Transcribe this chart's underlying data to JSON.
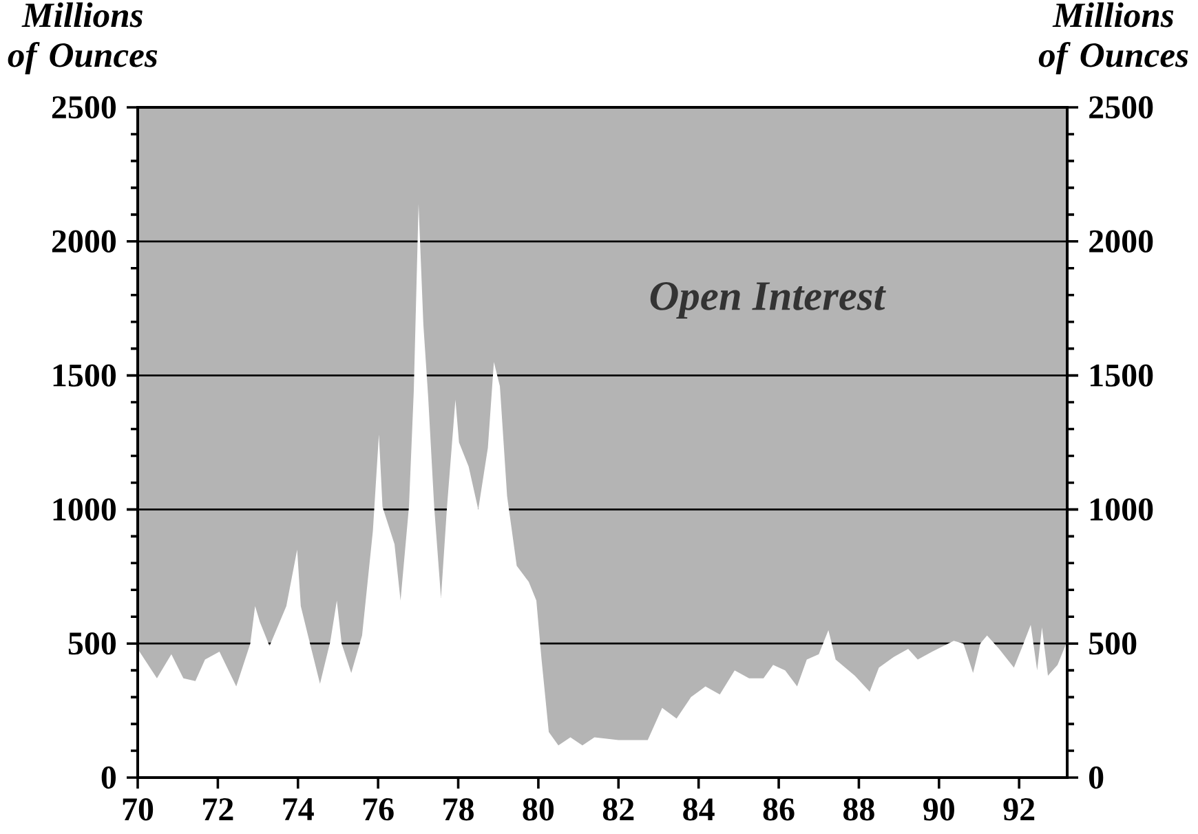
{
  "chart_data": {
    "type": "area",
    "ylabel": "Millions of Ounces",
    "y2label": "Millions of Ounces",
    "annotations": [
      "Open Interest"
    ],
    "x": [
      70.0,
      70.48,
      70.84,
      71.14,
      71.44,
      71.68,
      72.04,
      72.46,
      72.81,
      72.93,
      73.05,
      73.29,
      73.71,
      73.98,
      74.07,
      74.25,
      74.55,
      74.81,
      74.97,
      75.09,
      75.33,
      75.6,
      75.87,
      76.02,
      76.11,
      76.41,
      76.56,
      76.77,
      76.89,
      77.01,
      77.13,
      77.25,
      77.4,
      77.57,
      77.72,
      77.93,
      78.02,
      78.26,
      78.5,
      78.74,
      78.89,
      79.04,
      79.22,
      79.46,
      79.76,
      79.95,
      80.08,
      80.26,
      80.5,
      80.8,
      81.1,
      81.4,
      82.0,
      82.73,
      83.09,
      83.45,
      83.81,
      84.17,
      84.53,
      84.9,
      85.26,
      85.62,
      85.86,
      86.16,
      86.46,
      86.7,
      87.0,
      87.24,
      87.42,
      87.9,
      88.27,
      88.5,
      88.87,
      89.23,
      89.47,
      89.83,
      90.37,
      90.61,
      90.85,
      91.03,
      91.2,
      91.5,
      91.87,
      92.11,
      92.29,
      92.45,
      92.57,
      92.72,
      92.96,
      93.2
    ],
    "series": [
      {
        "color": "#ffffff",
        "values": [
          480,
          370,
          460,
          370,
          360,
          440,
          470,
          340,
          500,
          640,
          580,
          490,
          640,
          850,
          640,
          530,
          350,
          510,
          660,
          500,
          390,
          530,
          920,
          1280,
          1010,
          870,
          660,
          1010,
          1440,
          2140,
          1690,
          1420,
          1010,
          670,
          1010,
          1410,
          1250,
          1160,
          1000,
          1230,
          1550,
          1460,
          1050,
          790,
          730,
          660,
          440,
          170,
          120,
          150,
          120,
          150,
          140,
          140,
          260,
          220,
          300,
          340,
          310,
          400,
          370,
          370,
          420,
          400,
          340,
          440,
          460,
          550,
          440,
          380,
          320,
          410,
          450,
          480,
          440,
          470,
          510,
          500,
          390,
          500,
          530,
          480,
          410,
          500,
          570,
          400,
          560,
          380,
          420,
          510
        ]
      }
    ],
    "xlim": [
      70,
      93.2
    ],
    "xticks": [
      70,
      72,
      74,
      76,
      78,
      80,
      82,
      84,
      86,
      88,
      90,
      92
    ],
    "ylim": [
      0,
      2500
    ],
    "yticks": [
      0,
      {
        "value": 100,
        "label": null
      },
      {
        "value": 200,
        "label": null
      },
      {
        "value": 300,
        "label": null
      },
      {
        "value": 400,
        "label": null
      },
      500,
      {
        "value": 600,
        "label": null
      },
      {
        "value": 700,
        "label": null
      },
      {
        "value": 800,
        "label": null
      },
      {
        "value": 900,
        "label": null
      },
      1000,
      {
        "value": 1100,
        "label": null
      },
      {
        "value": 1200,
        "label": null
      },
      {
        "value": 1300,
        "label": null
      },
      {
        "value": 1400,
        "label": null
      },
      1500,
      {
        "value": 1600,
        "label": null
      },
      {
        "value": 1700,
        "label": null
      },
      {
        "value": 1800,
        "label": null
      },
      {
        "value": 1900,
        "label": null
      },
      2000,
      {
        "value": 2100,
        "label": null
      },
      {
        "value": 2200,
        "label": null
      },
      {
        "value": 2300,
        "label": null
      },
      {
        "value": 2400,
        "label": null
      },
      2500
    ],
    "y2lim": [
      0,
      2500
    ],
    "y2ticks": [
      0,
      {
        "value": 100,
        "label": null
      },
      {
        "value": 200,
        "label": null
      },
      {
        "value": 300,
        "label": null
      },
      {
        "value": 400,
        "label": null
      },
      500,
      {
        "value": 600,
        "label": null
      },
      {
        "value": 700,
        "label": null
      },
      {
        "value": 800,
        "label": null
      },
      {
        "value": 900,
        "label": null
      },
      1000,
      {
        "value": 1100,
        "label": null
      },
      {
        "value": 1200,
        "label": null
      },
      {
        "value": 1300,
        "label": null
      },
      {
        "value": 1400,
        "label": null
      },
      1500,
      {
        "value": 1600,
        "label": null
      },
      {
        "value": 1700,
        "label": null
      },
      {
        "value": 1800,
        "label": null
      },
      {
        "value": 1900,
        "label": null
      },
      2000,
      {
        "value": 2100,
        "label": null
      },
      {
        "value": 2200,
        "label": null
      },
      {
        "value": 2300,
        "label": null
      },
      {
        "value": 2400,
        "label": null
      },
      2500
    ],
    "grid": "y"
  }
}
